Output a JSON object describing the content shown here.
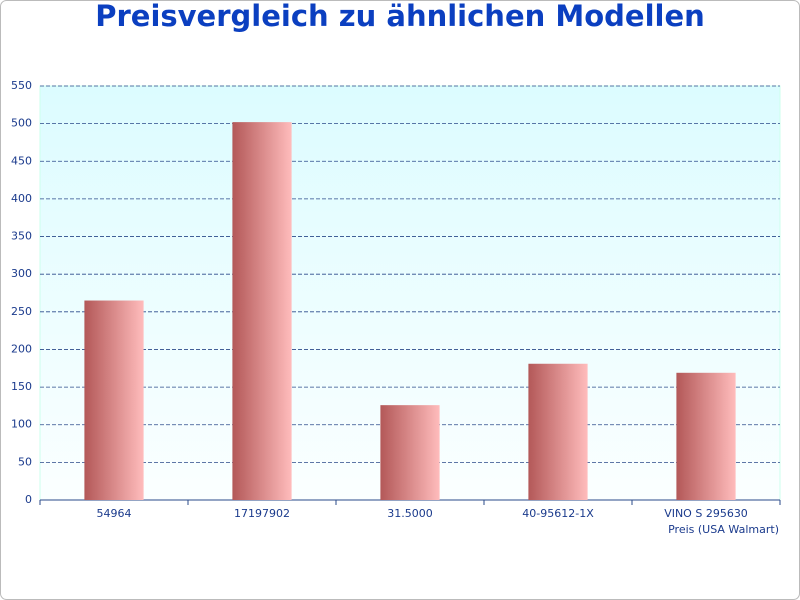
{
  "chart_data": {
    "type": "bar",
    "title": "Preisvergleich zu ähnlichen Modellen",
    "categories": [
      "54964",
      "17197902",
      "31.5000",
      "40-95612-1X",
      "VINO S 295630"
    ],
    "series": [
      {
        "name": "Preis (USA Walmart)",
        "color": "#b85c5c",
        "values": [
          265,
          502,
          126,
          181,
          169
        ]
      }
    ],
    "ylim": [
      0,
      550
    ],
    "yticks": [
      0,
      50,
      100,
      150,
      200,
      250,
      300,
      350,
      400,
      450,
      500,
      550
    ],
    "grid": true
  }
}
